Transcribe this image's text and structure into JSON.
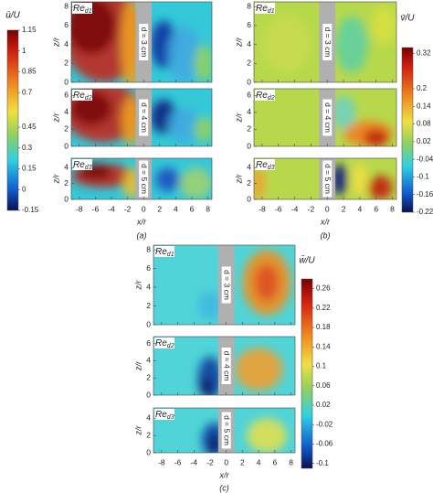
{
  "chart_data": [
    {
      "type": "contour",
      "panel_label": "(a)",
      "xlabel": "x/r",
      "ylabel": "z/r",
      "xlim": [
        -9,
        8.5
      ],
      "xticks": [
        -8,
        -6,
        -4,
        -2,
        0,
        2,
        4,
        6,
        8
      ],
      "colorbar": {
        "label": "ū/U",
        "lim": [
          -0.15,
          1.15
        ],
        "ticks": [
          1.15,
          1,
          0.85,
          0.7,
          0.45,
          0.3,
          0.15,
          0,
          -0.15
        ]
      },
      "subplots": [
        {
          "ylim": [
            0,
            8.5
          ],
          "yticks": [
            0,
            2,
            4,
            6,
            8
          ],
          "re": "Re",
          "re_sub": "d1",
          "gap_label": "d = 3 cm"
        },
        {
          "ylim": [
            0,
            6.8
          ],
          "yticks": [
            0,
            2,
            4,
            6
          ],
          "re": "Re",
          "re_sub": "d2",
          "gap_label": "d = 4 cm"
        },
        {
          "ylim": [
            0,
            5.2
          ],
          "yticks": [
            0,
            2,
            4
          ],
          "re": "Re",
          "re_sub": "d3",
          "gap_label": "d = 5 cm"
        }
      ]
    },
    {
      "type": "contour",
      "panel_label": "(b)",
      "xlabel": "x/r",
      "ylabel": "z/r",
      "xlim": [
        -9,
        8.5
      ],
      "xticks": [
        -8,
        -6,
        -4,
        -2,
        0,
        2,
        4,
        6,
        8
      ],
      "colorbar": {
        "label": "v̄/U",
        "lim": [
          -0.22,
          0.34
        ],
        "ticks": [
          0.32,
          0.2,
          0.14,
          0.08,
          0.02,
          -0.04,
          -0.1,
          -0.16,
          -0.22
        ]
      },
      "subplots": [
        {
          "ylim": [
            0,
            8.5
          ],
          "yticks": [
            0,
            2,
            4,
            6,
            8
          ],
          "re": "Re",
          "re_sub": "d1",
          "gap_label": "d = 3 cm"
        },
        {
          "ylim": [
            0,
            6.8
          ],
          "yticks": [
            0,
            2,
            4,
            6
          ],
          "re": "Re",
          "re_sub": "d2",
          "gap_label": "d = 4 cm"
        },
        {
          "ylim": [
            0,
            5.2
          ],
          "yticks": [
            0,
            2,
            4
          ],
          "re": "Re",
          "re_sub": "d3",
          "gap_label": "d = 5 cm"
        }
      ]
    },
    {
      "type": "contour",
      "panel_label": "(c)",
      "xlabel": "x/r",
      "ylabel": "z/r",
      "xlim": [
        -9,
        8.5
      ],
      "xticks": [
        -8,
        -6,
        -4,
        -2,
        0,
        2,
        4,
        6,
        8
      ],
      "colorbar": {
        "label": "w̄/U",
        "lim": [
          -0.11,
          0.28
        ],
        "ticks": [
          0.26,
          0.22,
          0.18,
          0.14,
          0.1,
          0.06,
          0.02,
          -0.02,
          -0.06,
          -0.1
        ]
      },
      "subplots": [
        {
          "ylim": [
            0,
            8.5
          ],
          "yticks": [
            0,
            2,
            4,
            6,
            8
          ],
          "re": "Re",
          "re_sub": "d1",
          "gap_label": "d = 3 cm"
        },
        {
          "ylim": [
            0,
            6.8
          ],
          "yticks": [
            0,
            2,
            4,
            6
          ],
          "re": "Re",
          "re_sub": "d2",
          "gap_label": "d = 4 cm"
        },
        {
          "ylim": [
            0,
            5.2
          ],
          "yticks": [
            0,
            2,
            4
          ],
          "re": "Re",
          "re_sub": "d3",
          "gap_label": "d = 5 cm"
        }
      ]
    }
  ]
}
